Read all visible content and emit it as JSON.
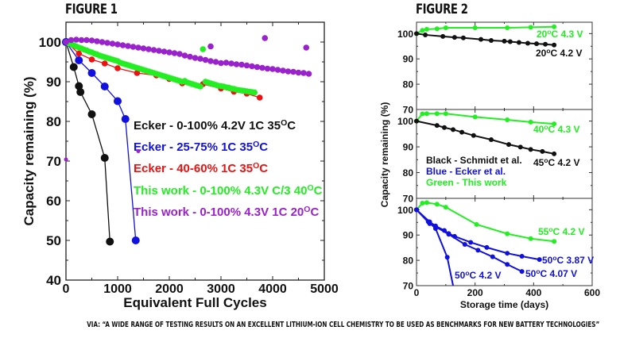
{
  "caption": "VIA: “A WIDE RANGE OF TESTING RESULTS ON AN EXCELLENT LITHIUM-ION CELL CHEMISTRY TO BE USED AS BENCHMARKS FOR NEW BATTERY TECHNOLOGIES”",
  "colors": {
    "black": "#111111",
    "blue": "#1010e0",
    "red": "#ee1111",
    "green": "#22ee22",
    "purple": "#9922cc"
  },
  "chart_data": [
    {
      "type": "scatter",
      "title": "FIGURE 1",
      "xlabel": "Equivalent Full Cycles",
      "ylabel": "Capacity remaining (%)",
      "xlim": [
        0,
        5000
      ],
      "ylim": [
        40,
        105
      ],
      "xticks": [
        "0",
        "1000",
        "2000",
        "3000",
        "4000",
        "5000"
      ],
      "yticks": [
        "40",
        "50",
        "60",
        "70",
        "80",
        "90",
        "100"
      ],
      "legend_position": "center-right",
      "series": [
        {
          "name": "Ecker - 0-100% 4.2V 1C 35",
          "sup": "O",
          "suffix": "C",
          "color": "black",
          "line": true,
          "marker": "large",
          "x": [
            0,
            150,
            250,
            280,
            500,
            750,
            850
          ],
          "y": [
            100,
            93.7,
            88.9,
            87.4,
            81.8,
            70.8,
            49.7
          ]
        },
        {
          "name": "Ecker - 25-75% 1C 35",
          "sup": "O",
          "suffix": "C",
          "color": "blue",
          "line": true,
          "marker": "large",
          "x": [
            0,
            250,
            500,
            750,
            1000,
            1150,
            1350
          ],
          "y": [
            100,
            95.4,
            92.2,
            88.8,
            85.1,
            80.6,
            50
          ]
        },
        {
          "name": "Ecker - 40-60% 1C 35",
          "sup": "O",
          "suffix": "C",
          "color": "red",
          "line": true,
          "marker": "medium",
          "x": [
            0,
            250,
            500,
            750,
            1000,
            1375,
            1750,
            2000,
            2250,
            2650,
            3000,
            3250,
            3500,
            3750,
            3050,
            3100,
            3150
          ],
          "y": [
            100,
            97.1,
            95.6,
            94.6,
            93.4,
            92.2,
            91.6,
            90.7,
            89.6,
            89.4,
            88.3,
            87.5,
            87.0,
            86.0,
            87.9,
            87.4,
            86.5
          ]
        },
        {
          "name": "This work - 0-100% 4.3V C/3 40",
          "sup": "O",
          "suffix": "C",
          "color": "green",
          "line": false,
          "marker": "medium",
          "x": [
            0,
            50,
            100,
            150,
            200,
            250,
            300,
            350,
            400,
            450,
            500,
            550,
            600,
            650,
            700,
            750,
            800,
            850,
            900,
            950,
            1000,
            1050,
            1100,
            1150,
            1200,
            1250,
            1300,
            1350,
            1400,
            1450,
            1500,
            1550,
            1600,
            1650,
            1700,
            1750,
            1800,
            1850,
            1900,
            1950,
            2000,
            2050,
            2100,
            2150,
            2200,
            2250,
            2300,
            2350,
            2400,
            2450,
            2500,
            2550,
            2600,
            2700,
            2750,
            2800,
            2850,
            2900,
            2950,
            3000,
            3050,
            3100,
            3150,
            3200,
            3250,
            3300,
            3350,
            3400,
            3450,
            3500,
            3550,
            3600,
            3650,
            2650
          ],
          "y": [
            100,
            99.7,
            99.5,
            99.2,
            98.9,
            98.6,
            98.4,
            98.1,
            97.9,
            97.6,
            97.4,
            97.1,
            96.9,
            96.6,
            96.4,
            96.2,
            96.0,
            95.8,
            95.6,
            95.4,
            95.2,
            94.8,
            94.6,
            94.4,
            94.2,
            94.0,
            93.8,
            93.6,
            93.4,
            93.2,
            93.0,
            92.8,
            92.6,
            92.4,
            92.2,
            92.0,
            91.8,
            91.6,
            91.4,
            91.2,
            91.0,
            90.8,
            90.6,
            90.4,
            90.2,
            90.0,
            90.2,
            89.8,
            89.6,
            89.4,
            89.2,
            89.0,
            88.8,
            90.0,
            89.8,
            89.6,
            89.4,
            89.2,
            89.0,
            88.9,
            88.8,
            88.6,
            88.5,
            88.3,
            88.2,
            88.0,
            87.9,
            87.8,
            87.7,
            87.6,
            87.5,
            87.4,
            87.3,
            98.2
          ]
        },
        {
          "name": "This work - 0-100% 4.3V 1C 20",
          "sup": "O",
          "suffix": "C",
          "color": "purple",
          "line": false,
          "marker": "medium",
          "x": [
            0,
            100,
            200,
            300,
            400,
            500,
            600,
            700,
            800,
            900,
            1000,
            1100,
            1200,
            1300,
            1400,
            1500,
            1600,
            1700,
            1800,
            1900,
            2000,
            2100,
            2200,
            2300,
            2400,
            2500,
            2600,
            2700,
            2800,
            2900,
            3000,
            3100,
            3200,
            3300,
            3400,
            3500,
            3600,
            3700,
            3800,
            3900,
            4000,
            4100,
            4200,
            4300,
            4400,
            4500,
            4600,
            4700,
            0,
            2800,
            3850,
            4650,
            1400
          ],
          "y": [
            100,
            100.5,
            100.6,
            100.5,
            100.5,
            100.4,
            100.2,
            100.0,
            99.8,
            99.6,
            99.4,
            99.2,
            99.0,
            98.8,
            98.6,
            98.4,
            98.2,
            98.0,
            97.8,
            97.6,
            97.4,
            97.2,
            97.0,
            96.6,
            96.3,
            96.0,
            95.8,
            95.5,
            95.2,
            95.0,
            94.7,
            94.8,
            94.6,
            94.4,
            94.3,
            94.1,
            93.9,
            93.7,
            93.5,
            93.3,
            93.2,
            93.0,
            92.8,
            92.6,
            92.5,
            92.3,
            92.2,
            92.0,
            70.4,
            98.9,
            101.0,
            98.6,
            72.5
          ]
        }
      ]
    },
    {
      "type": "line",
      "title": "FIGURE 2",
      "xlabel": "Storage time (days)",
      "ylabel": "Capacity remaining (%)",
      "xlim": [
        0,
        600
      ],
      "xticks": [
        "0",
        "200",
        "400",
        "600"
      ],
      "panel_ylim": [
        70,
        105
      ],
      "yticks": [
        "70",
        "80",
        "90",
        "100"
      ],
      "legend": [
        "Black - Schmidt et al.",
        "Blue - Ecker et al.",
        "Green - This work"
      ],
      "panels": [
        {
          "series": [
            {
              "label": "20",
              "sup": "o",
              "suffix": "C 4.3 V",
              "color": "green",
              "x": [
                0,
                20,
                35,
                70,
                100,
                200,
                310,
                390,
                470
              ],
              "y": [
                100,
                101.3,
                101.7,
                101.9,
                102.3,
                102.3,
                102.3,
                102.5,
                102.7
              ]
            },
            {
              "label": "20",
              "sup": "o",
              "suffix": "C 4.2 V",
              "color": "black",
              "x": [
                0,
                30,
                90,
                130,
                160,
                220,
                255,
                300,
                320,
                350,
                380,
                410,
                440,
                470
              ],
              "y": [
                100,
                99.5,
                98.9,
                98.5,
                98.3,
                97.7,
                97.3,
                97.0,
                96.8,
                96.5,
                96.2,
                96.0,
                95.8,
                95.5
              ]
            }
          ]
        },
        {
          "series": [
            {
              "label": "40",
              "sup": "o",
              "suffix": "C 4.3 V",
              "color": "green",
              "x": [
                0,
                20,
                35,
                70,
                100,
                200,
                310,
                390,
                470
              ],
              "y": [
                100,
                102.8,
                102.9,
                102.9,
                102.9,
                101.6,
                100.5,
                99.6,
                98.9
              ]
            },
            {
              "label": "45",
              "sup": "o",
              "suffix": "C 4.2 V",
              "color": "black",
              "x": [
                0,
                70,
                95,
                125,
                155,
                195,
                255,
                315,
                355,
                390,
                430,
                470
              ],
              "y": [
                100,
                98.3,
                97.5,
                96.7,
                95.7,
                94.4,
                92.8,
                90.9,
                89.9,
                89.0,
                88.2,
                87.3
              ]
            }
          ]
        },
        {
          "series": [
            {
              "label": "55",
              "sup": "o",
              "suffix": "C 4.2 V",
              "color": "green",
              "x": [
                0,
                20,
                35,
                70,
                100,
                205,
                310,
                390,
                470
              ],
              "y": [
                100,
                102.6,
                102.8,
                102.2,
                101.0,
                94.2,
                90.5,
                88.6,
                87.5
              ]
            },
            {
              "label": "50",
              "sup": "o",
              "suffix": "C 3.87 V",
              "color": "blue",
              "x": [
                0,
                45,
                65,
                95,
                110,
                130,
                185,
                240,
                310,
                360,
                420
              ],
              "y": [
                100,
                95.2,
                93.6,
                91.8,
                90.6,
                89.5,
                87.1,
                85.1,
                82.8,
                81.6,
                80.3
              ]
            },
            {
              "label": "50",
              "sup": "o",
              "suffix": "C 4.07 V",
              "color": "blue",
              "x": [
                0,
                45,
                65,
                110,
                165,
                210,
                260,
                310,
                360
              ],
              "y": [
                100,
                94.5,
                93.3,
                90.3,
                86.3,
                84.0,
                81.4,
                78.4,
                75.6
              ]
            },
            {
              "label": "50",
              "sup": "o",
              "suffix": "C 4.2 V",
              "color": "blue",
              "x": [
                0,
                40,
                65,
                105,
                125
              ],
              "y": [
                100,
                95.3,
                92.6,
                81.2,
                70
              ]
            }
          ]
        }
      ]
    }
  ]
}
